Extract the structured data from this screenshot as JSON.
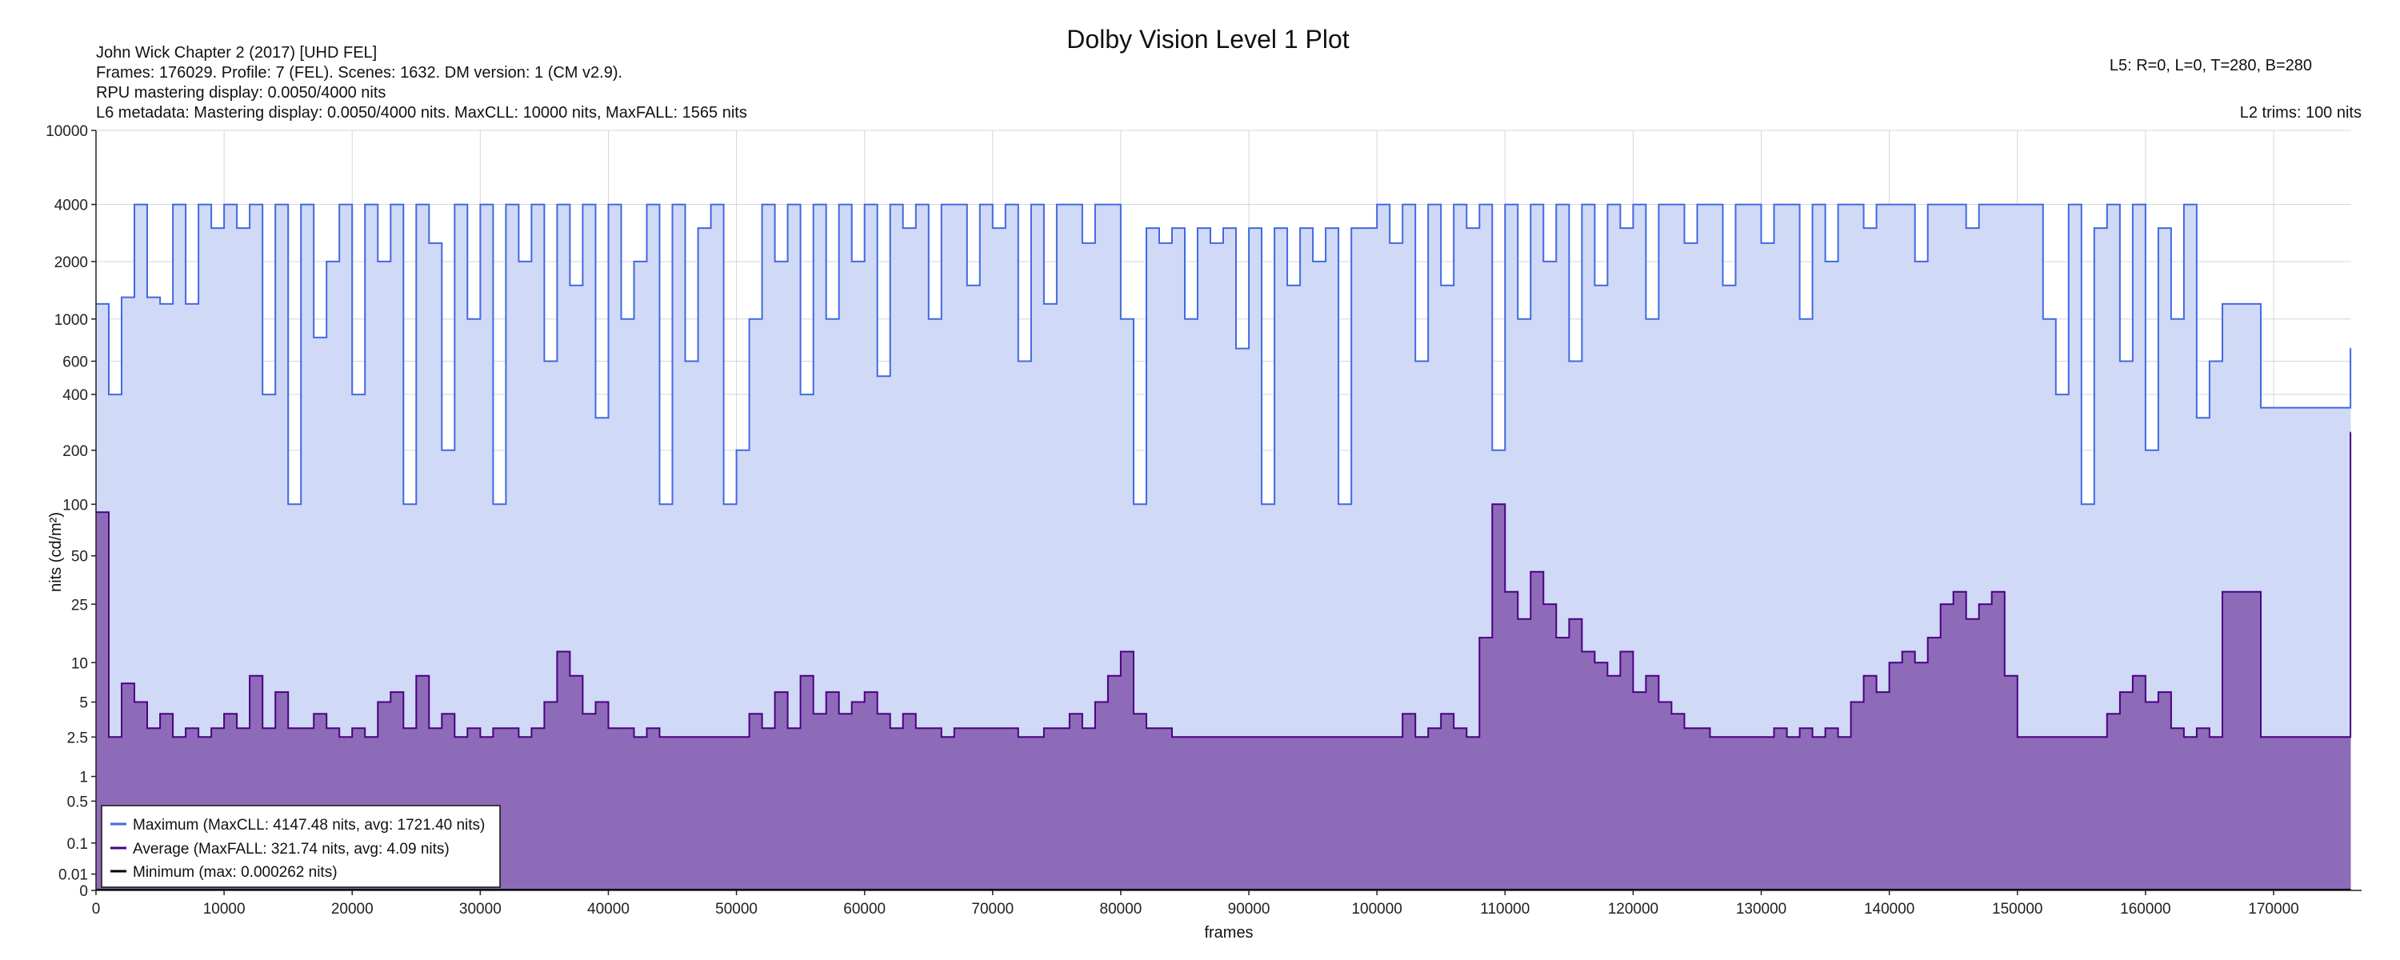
{
  "header": {
    "line1": "John Wick Chapter 2 (2017) [UHD FEL]",
    "line2": "Frames: 176029. Profile: 7 (FEL). Scenes: 1632. DM version: 1 (CM v2.9).",
    "line3": "RPU mastering display: 0.0050/4000 nits",
    "line4": "L6 metadata: Mastering display: 0.0050/4000 nits. MaxCLL: 10000 nits, MaxFALL: 1565 nits",
    "l5": "L5: R=0, L=0, T=280, B=280",
    "l2": "L2 trims: 100 nits"
  },
  "chart_data": {
    "type": "area",
    "title": "Dolby Vision Level 1 Plot",
    "xlabel": "frames",
    "ylabel": "nits (cd/m²)",
    "yscale": "PQ",
    "xlim": [
      0,
      176029
    ],
    "ylim": [
      0,
      10000
    ],
    "grid": true,
    "legend_position": "bottom-left",
    "x_ticks": [
      "0",
      "10000",
      "20000",
      "30000",
      "40000",
      "50000",
      "60000",
      "70000",
      "80000",
      "90000",
      "100000",
      "110000",
      "120000",
      "130000",
      "140000",
      "150000",
      "160000",
      "170000"
    ],
    "y_ticks": [
      "10000",
      "4000",
      "2000",
      "1000",
      "600",
      "400",
      "200",
      "100",
      "50",
      "25",
      "10",
      "5",
      "2.5",
      "1",
      "0.5",
      "0.1",
      "0.01",
      "0"
    ],
    "step_frames": 1000,
    "series": [
      {
        "name": "Maximum",
        "legend": "Maximum (MaxCLL: 4147.48 nits, avg: 1721.40 nits)",
        "color": "#4169e1",
        "fill": "#d0d9f6",
        "values": [
          1200,
          400,
          1300,
          4000,
          1300,
          1200,
          4000,
          1200,
          4000,
          3000,
          4000,
          3000,
          4000,
          400,
          4000,
          100,
          4000,
          800,
          2000,
          4000,
          400,
          4000,
          2000,
          4000,
          100,
          4000,
          2500,
          200,
          4000,
          1000,
          4000,
          100,
          4000,
          2000,
          4000,
          600,
          4000,
          1500,
          4000,
          300,
          4000,
          1000,
          2000,
          4000,
          100,
          4000,
          600,
          3000,
          4000,
          100,
          200,
          1000,
          4000,
          2000,
          4000,
          400,
          4000,
          1000,
          4000,
          2000,
          4000,
          500,
          4000,
          3000,
          4000,
          1000,
          4000,
          4000,
          1500,
          4000,
          3000,
          4000,
          600,
          4000,
          1200,
          4000,
          4000,
          2500,
          4000,
          4000,
          1000,
          100,
          3000,
          2500,
          3000,
          1000,
          3000,
          2500,
          3000,
          700,
          3000,
          100,
          3000,
          1500,
          3000,
          2000,
          3000,
          100,
          3000,
          3000,
          4000,
          2500,
          4000,
          600,
          4000,
          1500,
          4000,
          3000,
          4000,
          200,
          4000,
          1000,
          4000,
          2000,
          4000,
          600,
          4000,
          1500,
          4000,
          3000,
          4000,
          1000,
          4000,
          4000,
          2500,
          4000,
          4000,
          1500,
          4000,
          4000,
          2500,
          4000,
          4000,
          1000,
          4000,
          2000,
          4000,
          4000,
          3000,
          4000,
          4000,
          4000,
          2000,
          4000,
          4000,
          4000,
          3000,
          4000,
          4000,
          4000,
          4000,
          4000,
          1000,
          400,
          4000,
          100,
          3000,
          4000,
          600,
          4000,
          200,
          3000,
          1000,
          4000,
          300,
          600,
          1200,
          1200,
          1200,
          340,
          340,
          340,
          340,
          340,
          340,
          340,
          700
        ]
      },
      {
        "name": "Average",
        "legend": "Average (MaxFALL: 321.74 nits, avg: 4.09 nits)",
        "color": "#4b0082",
        "fill": "#8e6bb8",
        "values": [
          90,
          2.5,
          7,
          5,
          3,
          4,
          2.5,
          3,
          2.5,
          3,
          4,
          3,
          8,
          3,
          6,
          3,
          3,
          4,
          3,
          2.5,
          3,
          2.5,
          5,
          6,
          3,
          8,
          3,
          4,
          2.5,
          3,
          2.5,
          3,
          3,
          2.5,
          3,
          5,
          12,
          8,
          4,
          5,
          3,
          3,
          2.5,
          3,
          2.5,
          2.5,
          2.5,
          2.5,
          2.5,
          2.5,
          2.5,
          4,
          3,
          6,
          3,
          8,
          4,
          6,
          4,
          5,
          6,
          4,
          3,
          4,
          3,
          3,
          2.5,
          3,
          3,
          3,
          3,
          3,
          2.5,
          2.5,
          3,
          3,
          4,
          3,
          5,
          8,
          12,
          4,
          3,
          3,
          2.5,
          2.5,
          2.5,
          2.5,
          2.5,
          2.5,
          2.5,
          2.5,
          2.5,
          2.5,
          2.5,
          2.5,
          2.5,
          2.5,
          2.5,
          2.5,
          2.5,
          2.5,
          4,
          2.5,
          3,
          4,
          3,
          2.5,
          15,
          100,
          30,
          20,
          40,
          25,
          15,
          20,
          12,
          10,
          8,
          12,
          6,
          8,
          5,
          4,
          3,
          3,
          2.5,
          2.5,
          2.5,
          2.5,
          2.5,
          3,
          2.5,
          3,
          2.5,
          3,
          2.5,
          5,
          8,
          6,
          10,
          12,
          10,
          15,
          25,
          30,
          20,
          25,
          30,
          8,
          2.5,
          2.5,
          2.5,
          2.5,
          2.5,
          2.5,
          2.5,
          4,
          6,
          8,
          5,
          6,
          3,
          2.5,
          3,
          2.5,
          30,
          30,
          30,
          2.5,
          2.5,
          2.5,
          2.5,
          2.5,
          2.5,
          2.5,
          250
        ]
      },
      {
        "name": "Minimum",
        "legend": "Minimum (max: 0.000262 nits)",
        "color": "#000000",
        "values": [
          0
        ]
      }
    ]
  }
}
